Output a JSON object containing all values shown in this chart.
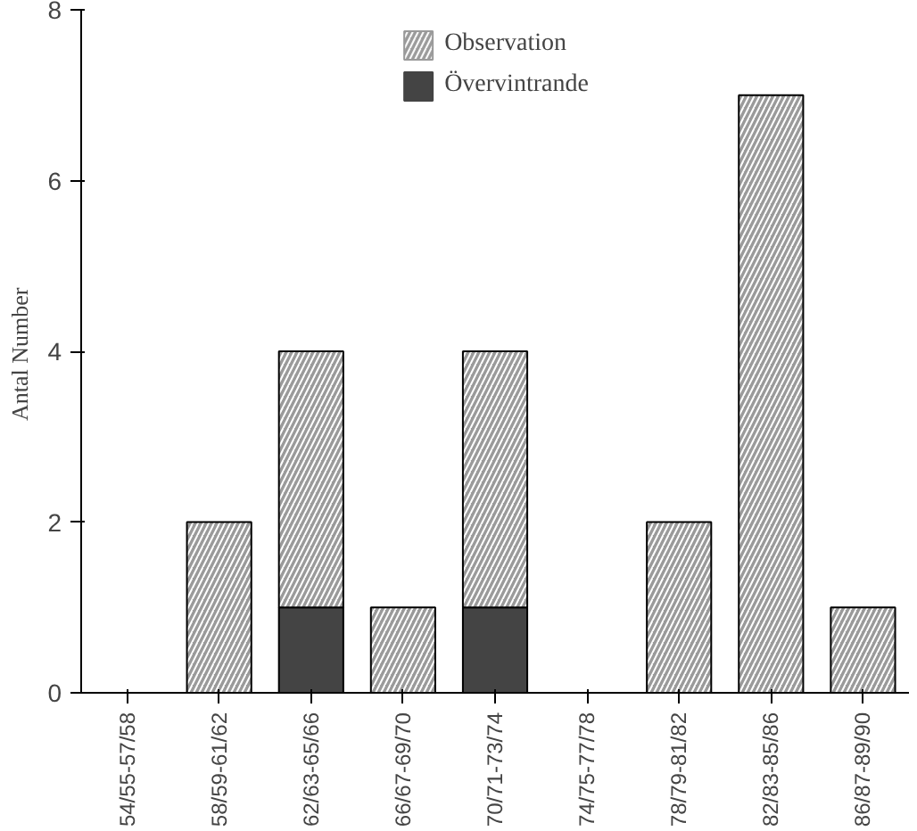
{
  "chart_data": {
    "type": "bar",
    "stacked": true,
    "ylabel": "Antal  Number",
    "categories": [
      "54/55-57/58",
      "58/59-61/62",
      "62/63-65/66",
      "66/67-69/70",
      "70/71-73/74",
      "74/75-77/78",
      "78/79-81/82",
      "82/83-85/86",
      "86/87-89/90"
    ],
    "series": [
      {
        "name": "Övervintrande",
        "color": "#444444",
        "values": [
          0,
          0,
          1,
          0,
          1,
          0,
          0,
          0,
          0
        ]
      },
      {
        "name": "Observation",
        "color": "#9a9a9a",
        "values": [
          0,
          2,
          3,
          1,
          3,
          0,
          2,
          7,
          1
        ]
      }
    ],
    "ylim": [
      0,
      8
    ],
    "yticks": [
      0,
      2,
      4,
      6,
      8
    ],
    "grid": false,
    "legend": "top"
  }
}
